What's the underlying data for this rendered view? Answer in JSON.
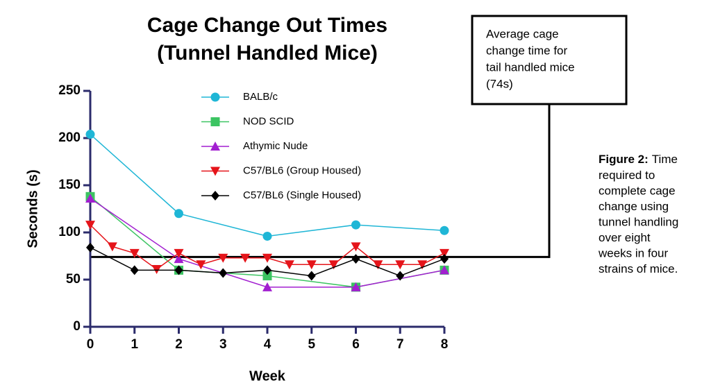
{
  "chart_data": {
    "type": "line",
    "title": [
      "Cage Change Out Times",
      "(Tunnel Handled Mice)"
    ],
    "x_label": "Week",
    "y_label": "Seconds (s)",
    "xlim": [
      0,
      8
    ],
    "xticks": [
      0,
      1,
      2,
      3,
      4,
      5,
      6,
      7,
      8
    ],
    "ylim": [
      0,
      250
    ],
    "yticks": [
      0,
      50,
      100,
      150,
      200,
      250
    ],
    "series": [
      {
        "name": "BALB/c",
        "color": "#1fb6d6",
        "marker": "circle",
        "x": [
          0,
          2,
          4,
          6,
          8
        ],
        "values": [
          204,
          120,
          96,
          108,
          102
        ]
      },
      {
        "name": "NOD SCID",
        "color": "#3cc462",
        "marker": "square",
        "x": [
          0,
          2,
          4,
          6,
          8
        ],
        "values": [
          138,
          60,
          54,
          42,
          60
        ]
      },
      {
        "name": "Athymic Nude",
        "color": "#a21fd0",
        "marker": "triangle-up",
        "x": [
          0,
          2,
          4,
          6,
          8
        ],
        "values": [
          136,
          72,
          42,
          42,
          60
        ]
      },
      {
        "name": "C57/BL6  (Group Housed)",
        "color": "#e5141a",
        "marker": "triangle-down",
        "x": [
          0,
          0.5,
          1,
          1.5,
          2,
          2.5,
          3,
          3.5,
          4,
          4.5,
          5,
          5.5,
          6,
          6.5,
          7,
          7.5,
          8
        ],
        "values": [
          108,
          85,
          78,
          61,
          78,
          66,
          73,
          73,
          73,
          66,
          66,
          66,
          85,
          66,
          66,
          66,
          78
        ]
      },
      {
        "name": "C57/BL6  (Single Housed)",
        "color": "#000000",
        "marker": "diamond",
        "x": [
          0,
          1,
          2,
          3,
          4,
          5,
          6,
          7,
          8
        ],
        "values": [
          84,
          60,
          60,
          57,
          60,
          54,
          72,
          54,
          72
        ]
      }
    ],
    "reference_line": {
      "value": 74,
      "color": "#000000",
      "text": [
        "Average cage",
        "change time for",
        "tail handled mice",
        "(74s)"
      ]
    },
    "caption": {
      "label": "Figure 2:",
      "lines": [
        "Time",
        "required to",
        "complete cage",
        "change using",
        "tunnel handling",
        "over eight",
        "weeks in four",
        "strains of mice."
      ]
    }
  }
}
